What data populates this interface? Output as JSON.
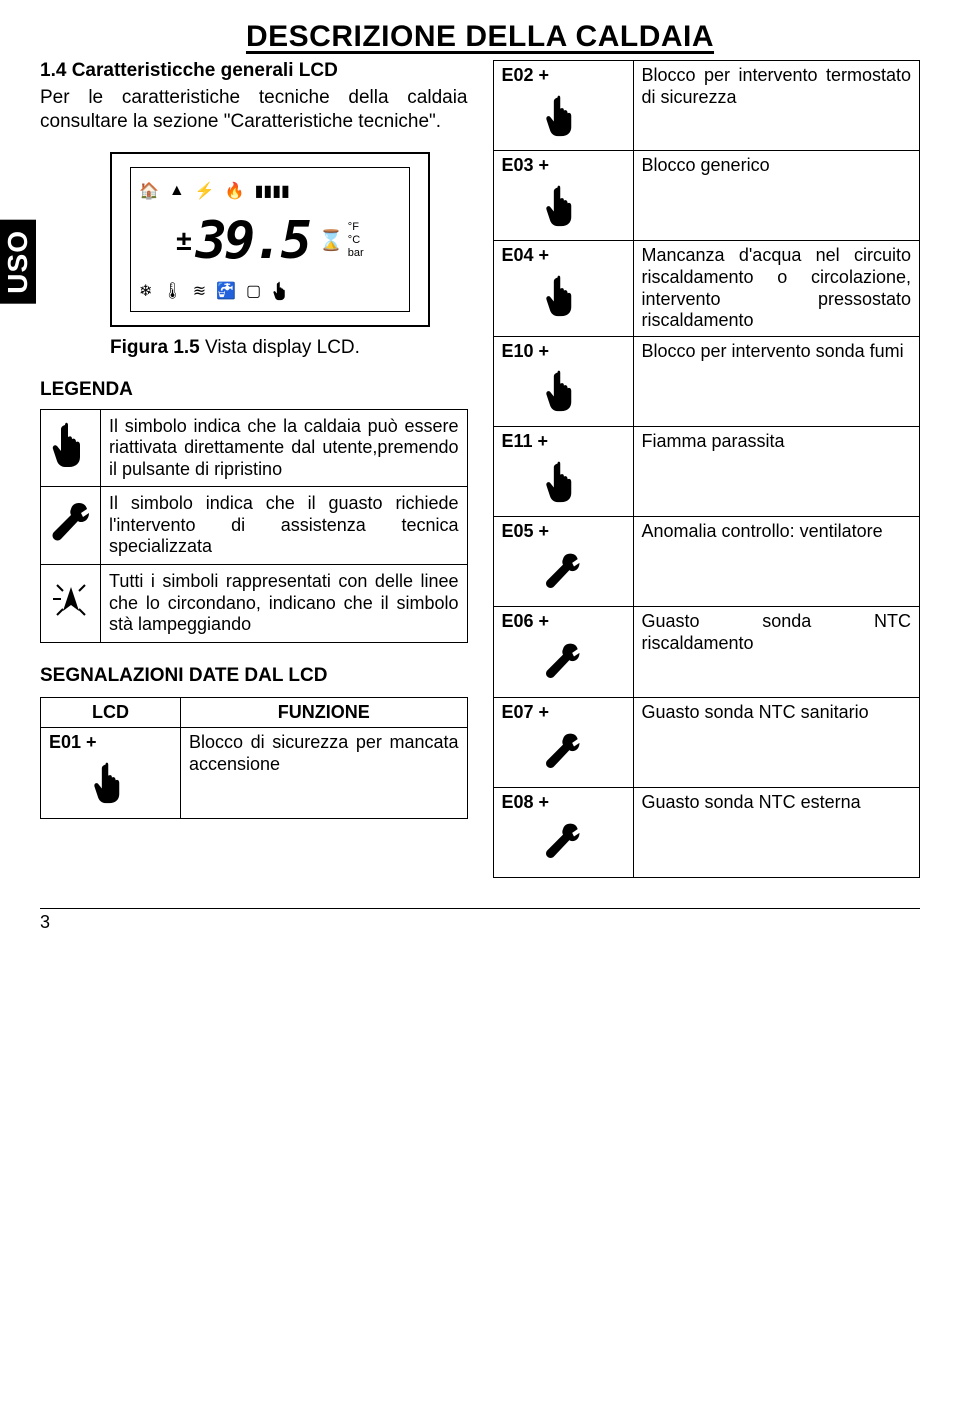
{
  "header": {
    "title": "DESCRIZIONE DELLA CALDAIA"
  },
  "uso_tab": "USO",
  "left": {
    "section_no": "1.4",
    "section_title": "Caratteristicche generali LCD",
    "intro": "Per le caratteristiche tecniche della caldaia consultare la sezione \"Caratteristiche tecniche\".",
    "lcd": {
      "digits": "39.5",
      "units": [
        "°F",
        "°C",
        "bar"
      ]
    },
    "caption_label": "Figura 1.5",
    "caption_text": " Vista display LCD.",
    "legenda_title": "LEGENDA",
    "legenda": [
      {
        "icon": "hand",
        "text": "Il simbolo indica che la caldaia può essere riattivata direttamente dal utente,premendo il pulsante di ripristino"
      },
      {
        "icon": "wrench",
        "text": "Il simbolo indica che il guasto richiede l'intervento di assistenza tecnica specializzata"
      },
      {
        "icon": "blink",
        "text": "Tutti i simboli rappresentati con delle linee che lo circondano, indicano che il simbolo stà lampeggiando"
      }
    ],
    "sig_title": "SEGNALAZIONI DATE DAL LCD",
    "sig_header": {
      "lcd": "LCD",
      "func": "FUNZIONE"
    },
    "sig_rows": [
      {
        "code": "E01 +",
        "icon": "hand",
        "desc": "Blocco di sicurezza per mancata accensione"
      }
    ]
  },
  "right_rows": [
    {
      "code": "E02 +",
      "icon": "hand",
      "desc": "Blocco per intervento termostato di sicurezza"
    },
    {
      "code": "E03 +",
      "icon": "hand",
      "desc": "Blocco generico"
    },
    {
      "code": "E04 +",
      "icon": "hand",
      "desc": "Mancanza d'acqua nel circuito riscaldamento o circolazione,\nintervento pressostato riscaldamento"
    },
    {
      "code": "E10 +",
      "icon": "hand",
      "desc": "Blocco per intervento sonda fumi"
    },
    {
      "code": "E11 +",
      "icon": "hand",
      "desc": "Fiamma parassita"
    },
    {
      "code": "E05 +",
      "icon": "wrench",
      "desc": "Anomalia controllo: ventilatore"
    },
    {
      "code": "E06 +",
      "icon": "wrench",
      "desc": "Guasto sonda NTC riscaldamento"
    },
    {
      "code": "E07 +",
      "icon": "wrench",
      "desc": "Guasto sonda NTC sanitario"
    },
    {
      "code": "E08 +",
      "icon": "wrench",
      "desc": "Guasto sonda NTC esterna"
    }
  ],
  "page_number": "3",
  "colors": {
    "text": "#000000",
    "bg": "#ffffff"
  }
}
